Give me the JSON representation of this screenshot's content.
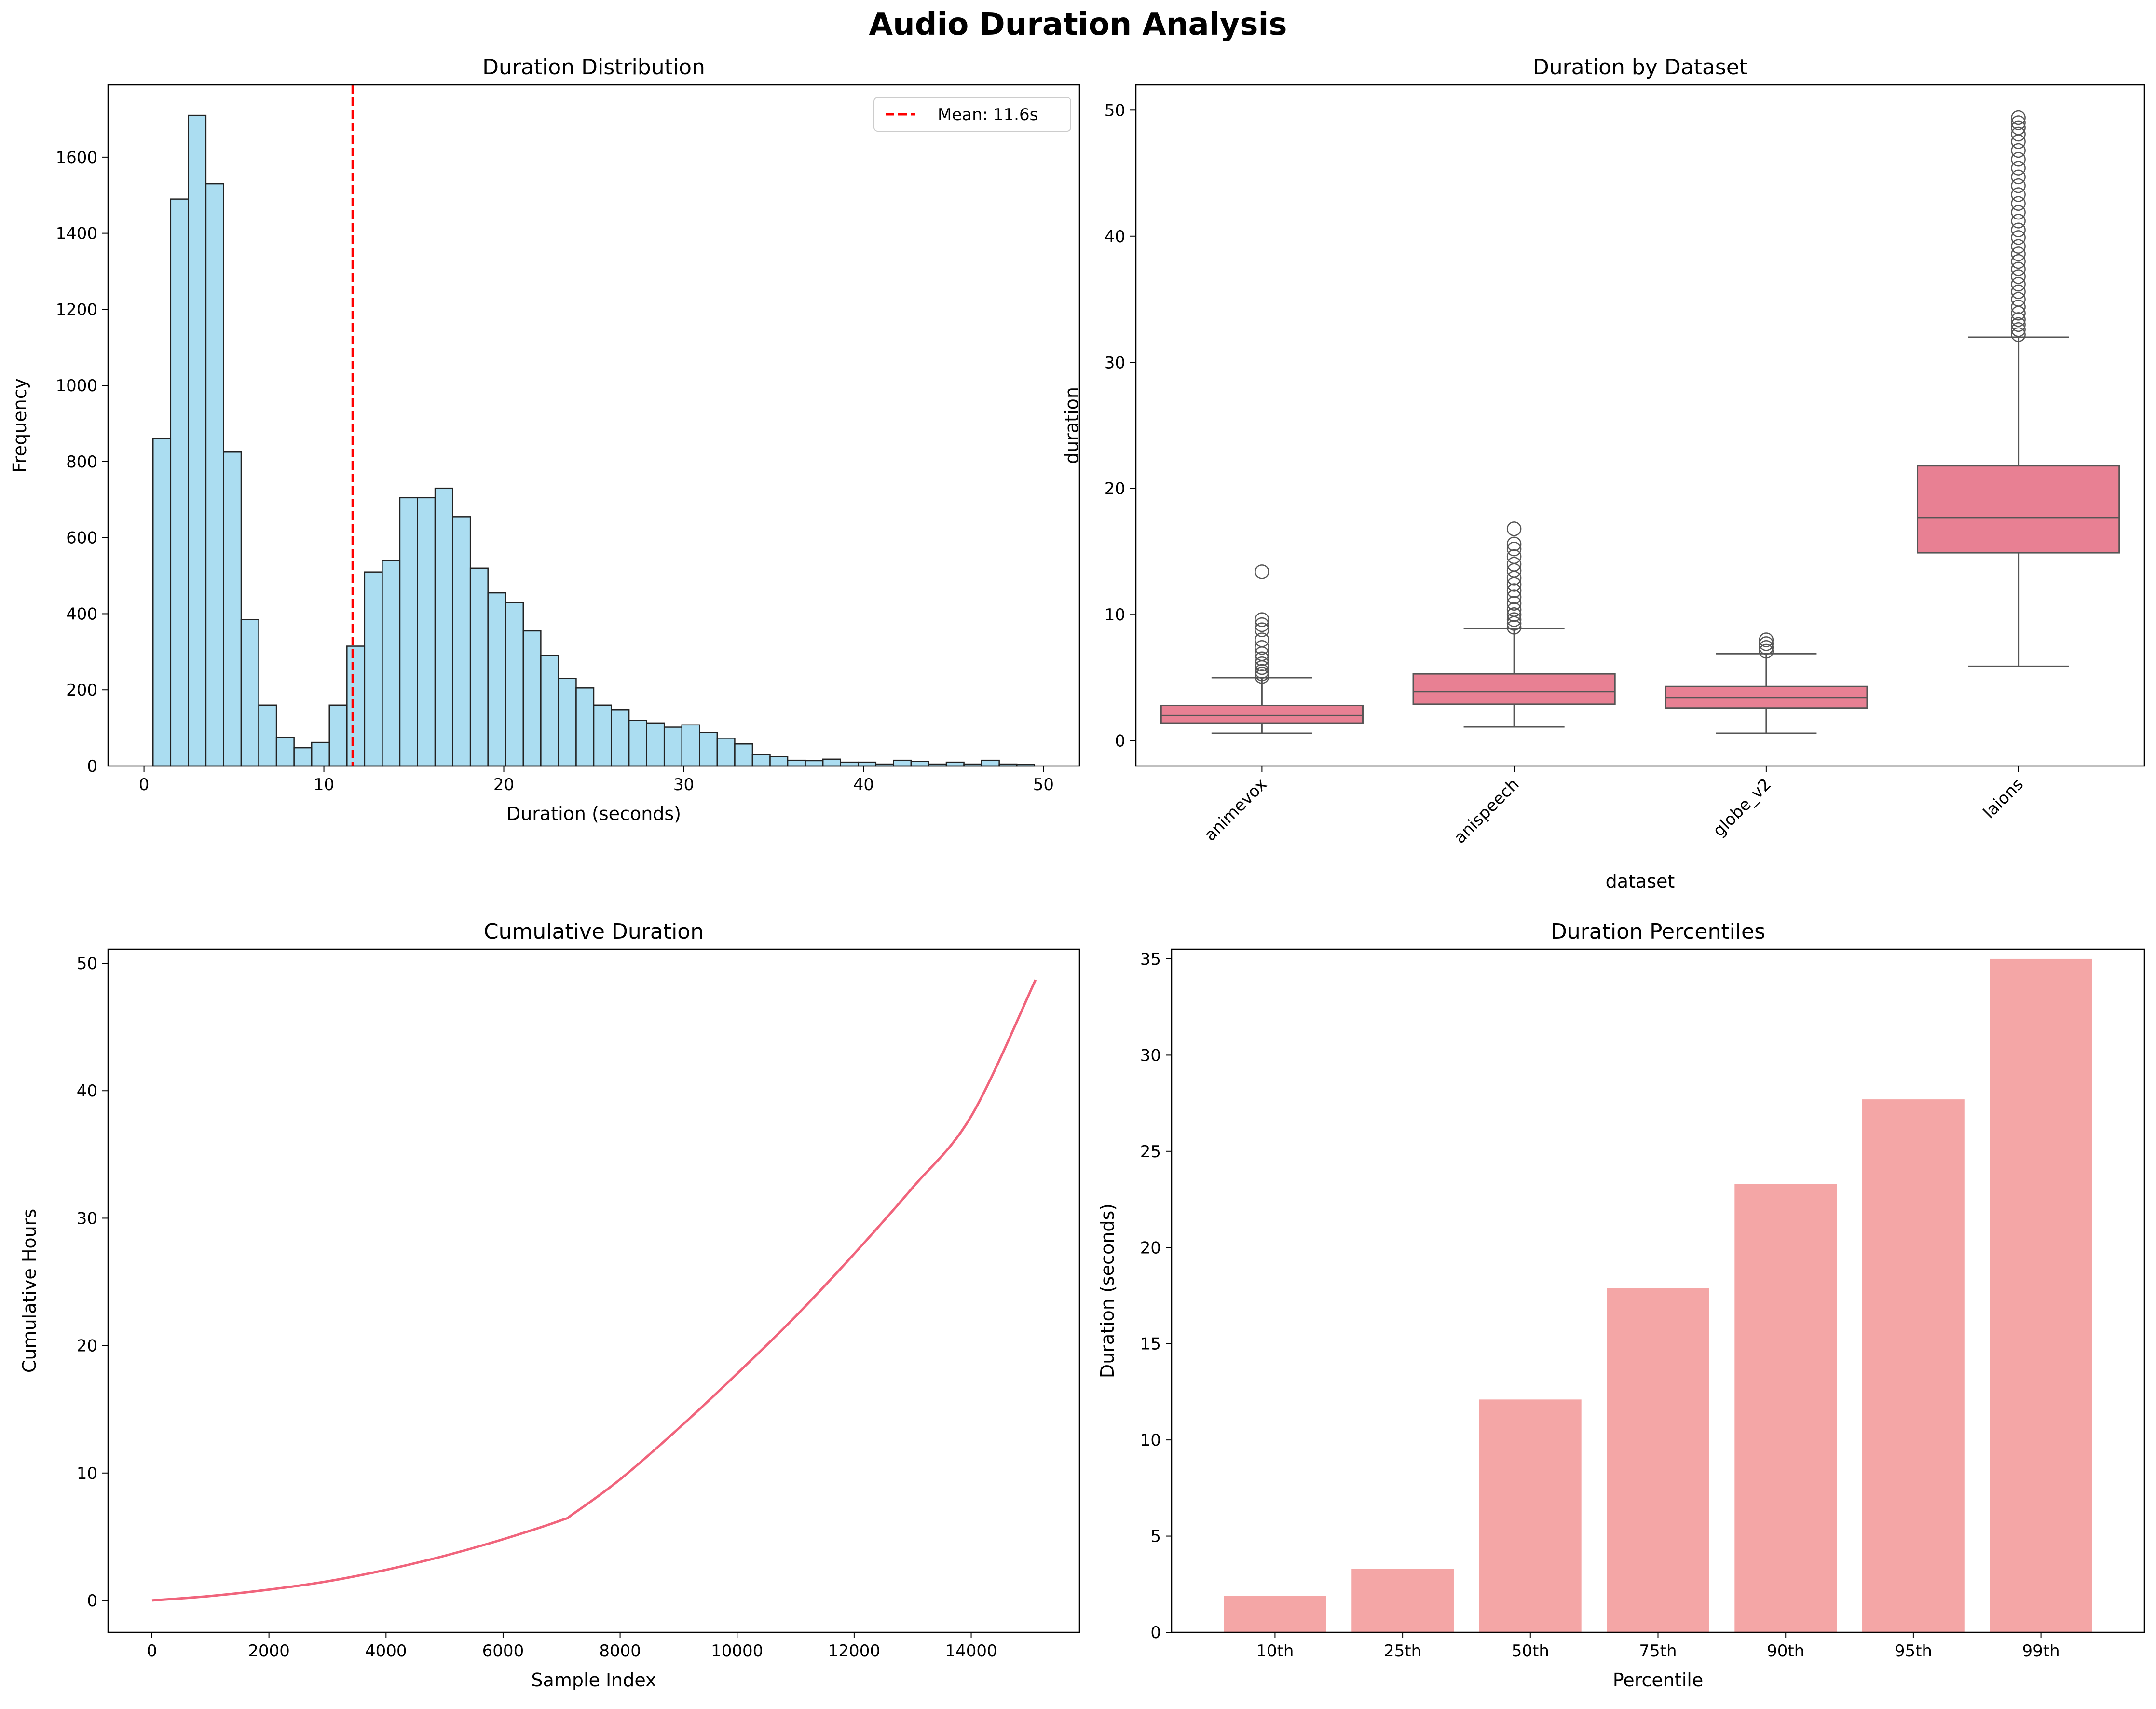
{
  "figure": {
    "title": "Audio Duration Analysis"
  },
  "chart_data": [
    {
      "id": "hist",
      "type": "bar",
      "title": "Duration Distribution",
      "xlabel": "Duration (seconds)",
      "ylabel": "Frequency",
      "xlim": [
        -2,
        52
      ],
      "ylim": [
        0,
        1790
      ],
      "xticks": [
        0,
        10,
        20,
        30,
        40,
        50
      ],
      "yticks": [
        0,
        200,
        400,
        600,
        800,
        1000,
        1200,
        1400,
        1600
      ],
      "bin_start": 0.5,
      "bin_width": 0.98,
      "values": [
        860,
        1490,
        1710,
        1530,
        825,
        385,
        160,
        75,
        48,
        62,
        160,
        315,
        510,
        540,
        705,
        705,
        730,
        655,
        520,
        455,
        430,
        355,
        290,
        230,
        205,
        160,
        148,
        120,
        113,
        102,
        108,
        88,
        73,
        58,
        30,
        25,
        15,
        14,
        18,
        10,
        10,
        5,
        15,
        12,
        5,
        10,
        5,
        15,
        5,
        4
      ],
      "mean_line": {
        "value": 11.6,
        "label": "Mean: 11.6s"
      },
      "legend": "upper right",
      "colors": {
        "bar": "#87ceeb",
        "edge": "#222222",
        "mean": "#ff0000"
      }
    },
    {
      "id": "box",
      "type": "box",
      "title": "Duration by Dataset",
      "xlabel": "dataset",
      "ylabel": "duration",
      "ylim": [
        -2,
        52
      ],
      "yticks": [
        0,
        10,
        20,
        30,
        40,
        50
      ],
      "categories": [
        "animevox",
        "anispeech",
        "globe_v2",
        "laions"
      ],
      "boxes": [
        {
          "whisker_low": 0.6,
          "q1": 1.4,
          "median": 2.0,
          "q3": 2.8,
          "whisker_high": 5.0,
          "outliers": [
            5.1,
            5.3,
            5.5,
            5.8,
            6.1,
            6.5,
            6.9,
            7.4,
            8.0,
            8.8,
            9.2,
            9.6,
            13.4
          ]
        },
        {
          "whisker_low": 1.1,
          "q1": 2.9,
          "median": 3.9,
          "q3": 5.3,
          "whisker_high": 8.9,
          "outliers": [
            9.0,
            9.3,
            9.6,
            10.0,
            10.4,
            10.9,
            11.4,
            11.9,
            12.4,
            12.9,
            13.5,
            14.0,
            14.6,
            15.2,
            15.6,
            16.8
          ]
        },
        {
          "whisker_low": 0.6,
          "q1": 2.6,
          "median": 3.4,
          "q3": 4.3,
          "whisker_high": 6.9,
          "outliers": [
            7.1,
            7.4,
            7.7,
            8.0
          ]
        },
        {
          "whisker_low": 5.9,
          "q1": 14.9,
          "median": 17.7,
          "q3": 21.8,
          "whisker_high": 32.0,
          "outliers": [
            32.2,
            32.6,
            33.0,
            33.4,
            33.9,
            34.4,
            35.0,
            35.6,
            36.2,
            36.8,
            37.4,
            38.0,
            38.6,
            39.2,
            39.9,
            40.5,
            41.2,
            41.9,
            42.6,
            43.3,
            44.0,
            44.7,
            45.4,
            46.1,
            46.8,
            47.5,
            48.1,
            48.6,
            49.0,
            49.4
          ]
        }
      ],
      "colors": {
        "box": "#e88093",
        "line": "#555555"
      }
    },
    {
      "id": "cum",
      "type": "line",
      "title": "Cumulative Duration",
      "xlabel": "Sample Index",
      "ylabel": "Cumulative Hours",
      "xlim": [
        -750,
        15850
      ],
      "ylim": [
        -2.5,
        51.1
      ],
      "xticks": [
        0,
        2000,
        4000,
        6000,
        8000,
        10000,
        12000,
        14000
      ],
      "yticks": [
        0,
        10,
        20,
        30,
        40,
        50
      ],
      "x": [
        0,
        1000,
        2000,
        3000,
        4000,
        5000,
        6000,
        7000,
        7200,
        8000,
        9000,
        10000,
        11000,
        12000,
        13000,
        14000,
        15100
      ],
      "y": [
        0,
        0.35,
        0.85,
        1.5,
        2.4,
        3.5,
        4.8,
        6.3,
        6.8,
        9.5,
        13.5,
        17.8,
        22.3,
        27.2,
        32.4,
        38.0,
        48.7
      ],
      "colors": {
        "line": "#f0647c"
      }
    },
    {
      "id": "pct",
      "type": "bar",
      "title": "Duration Percentiles",
      "xlabel": "Percentile",
      "ylabel": "Duration (seconds)",
      "ylim": [
        0,
        35.5
      ],
      "yticks": [
        0,
        5,
        10,
        15,
        20,
        25,
        30,
        35
      ],
      "categories": [
        "10th",
        "25th",
        "50th",
        "75th",
        "90th",
        "95th",
        "99th"
      ],
      "values": [
        1.9,
        3.3,
        12.1,
        17.9,
        23.3,
        27.7,
        35.0
      ],
      "colors": {
        "bar": "#f4a6a6"
      }
    }
  ]
}
